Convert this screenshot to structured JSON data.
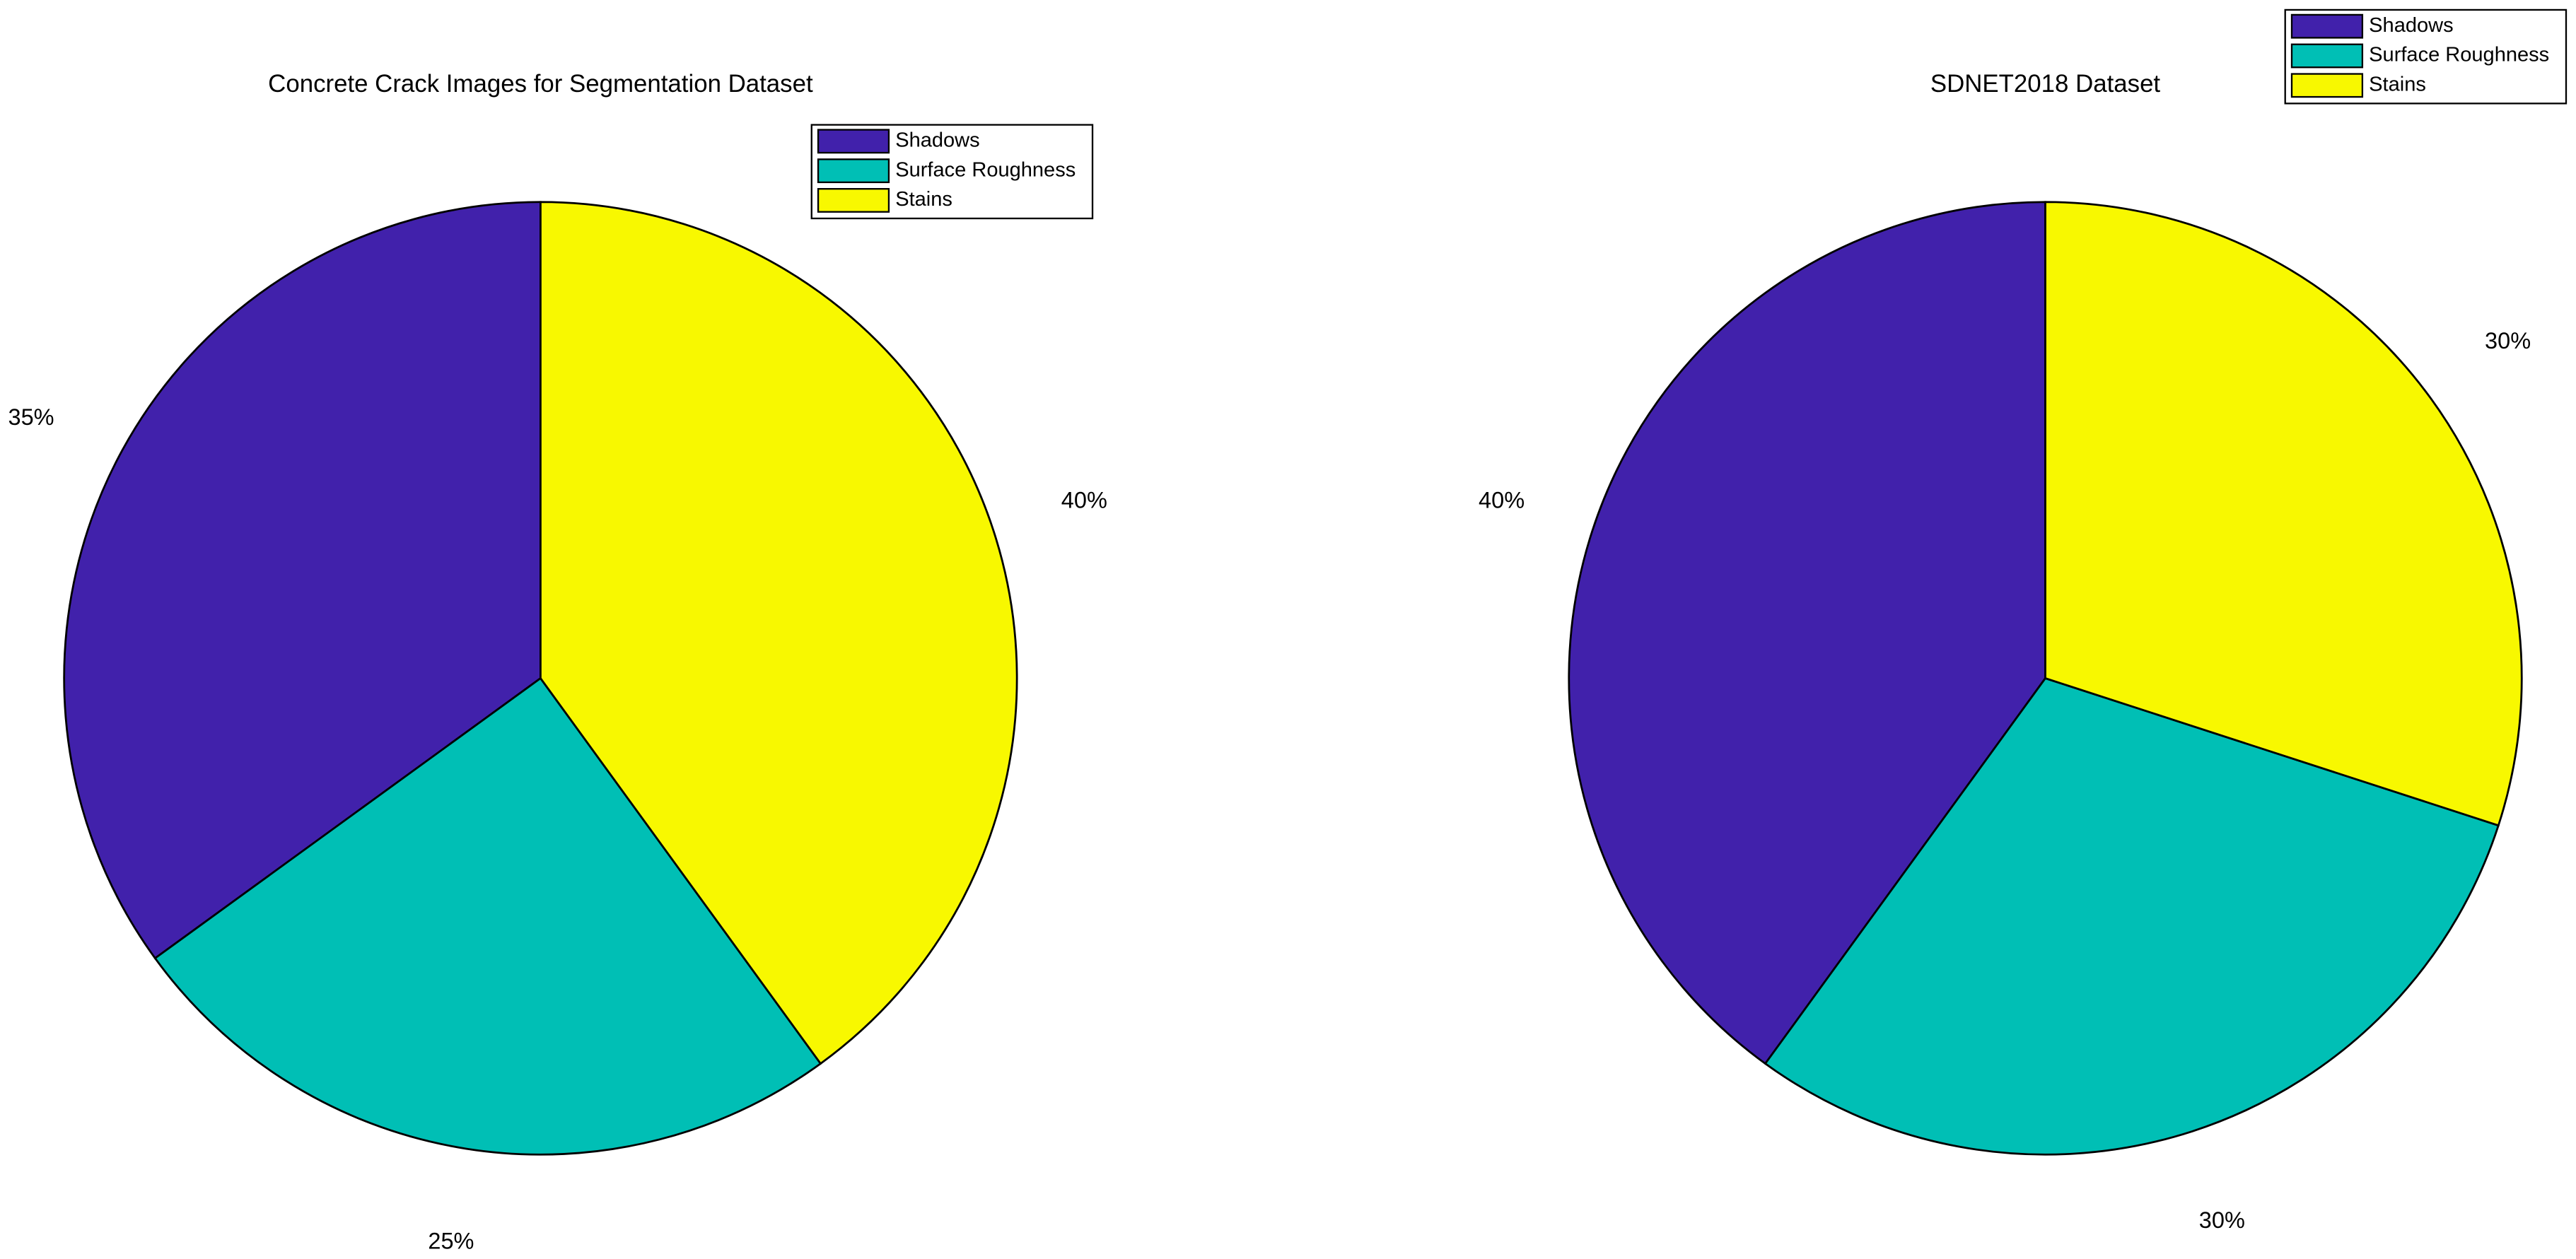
{
  "chart_data": [
    {
      "type": "pie",
      "title": "Concrete Crack Images for Segmentation Dataset",
      "categories": [
        "Shadows",
        "Surface Roughness",
        "Stains"
      ],
      "values": [
        35,
        25,
        40
      ],
      "value_labels": [
        "35%",
        "25%",
        "40%"
      ],
      "colors": [
        "#4121ab",
        "#00bfb5",
        "#f8f800"
      ],
      "legend": "northeast"
    },
    {
      "type": "pie",
      "title": "SDNET2018 Dataset",
      "categories": [
        "Shadows",
        "Surface Roughness",
        "Stains"
      ],
      "values": [
        40,
        30,
        30
      ],
      "value_labels": [
        "40%",
        "30%",
        "30%"
      ],
      "colors": [
        "#4121ab",
        "#00bfb5",
        "#f8f800"
      ],
      "legend": "northeast"
    }
  ]
}
